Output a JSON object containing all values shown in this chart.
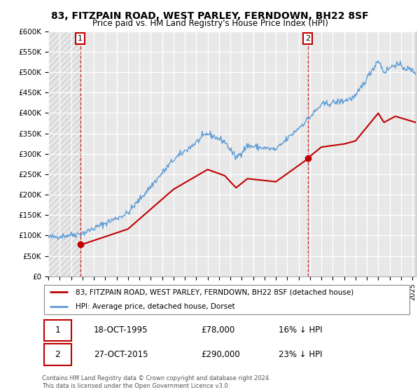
{
  "title": "83, FITZPAIN ROAD, WEST PARLEY, FERNDOWN, BH22 8SF",
  "subtitle": "Price paid vs. HM Land Registry's House Price Index (HPI)",
  "legend_line1": "83, FITZPAIN ROAD, WEST PARLEY, FERNDOWN, BH22 8SF (detached house)",
  "legend_line2": "HPI: Average price, detached house, Dorset",
  "annotation1_date": "18-OCT-1995",
  "annotation1_price": "£78,000",
  "annotation1_hpi": "16% ↓ HPI",
  "annotation2_date": "27-OCT-2015",
  "annotation2_price": "£290,000",
  "annotation2_hpi": "23% ↓ HPI",
  "copyright": "Contains HM Land Registry data © Crown copyright and database right 2024.\nThis data is licensed under the Open Government Licence v3.0.",
  "hpi_color": "#5b9bd5",
  "paid_color": "#c00000",
  "annotation_box_color": "#c00000",
  "chart_bg": "#e8e8e8",
  "ylim": [
    0,
    600000
  ],
  "ytick_values": [
    0,
    50000,
    100000,
    150000,
    200000,
    250000,
    300000,
    350000,
    400000,
    450000,
    500000,
    550000,
    600000
  ],
  "ytick_labels": [
    "£0",
    "£50K",
    "£100K",
    "£150K",
    "£200K",
    "£250K",
    "£300K",
    "£350K",
    "£400K",
    "£450K",
    "£500K",
    "£550K",
    "£600K"
  ],
  "xlim_start": 1993.0,
  "xlim_end": 2025.3,
  "xtick_start": 1993,
  "xtick_end": 2025,
  "paid_year1": 1995.8,
  "paid_price1": 78000,
  "paid_year2": 2015.8,
  "paid_price2": 290000,
  "hpi_seed": 42,
  "hpi_noise_std": 4000
}
